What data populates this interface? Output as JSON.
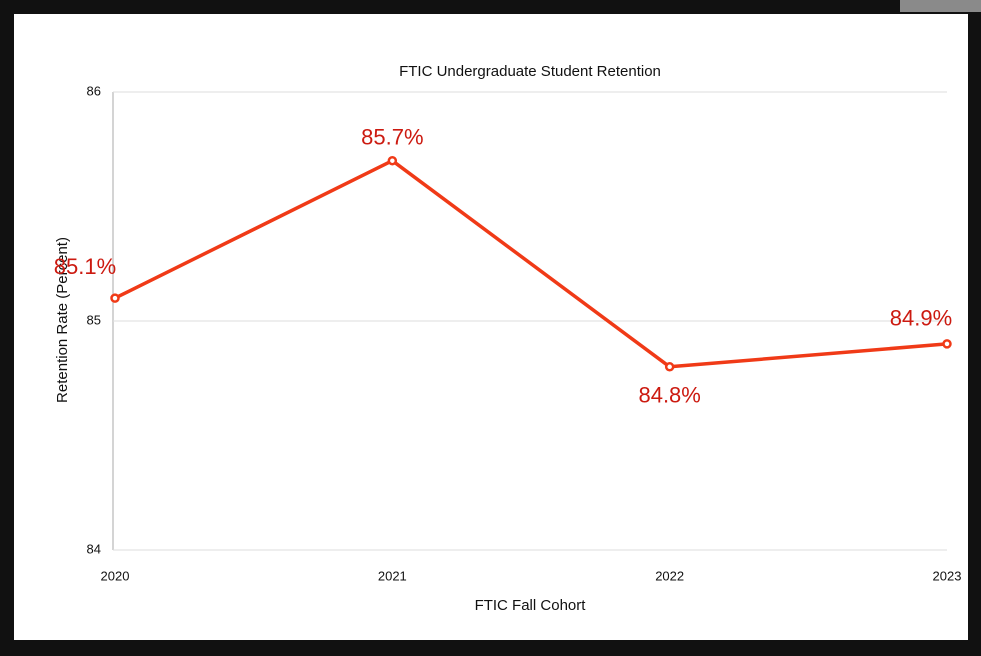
{
  "chart_data": {
    "type": "line",
    "title": "FTIC Undergraduate Student Retention",
    "x_label": "FTIC Fall Cohort",
    "y_label": "Retention Rate (Percent)",
    "categories": [
      "2020",
      "2021",
      "2022",
      "2023"
    ],
    "series": [
      {
        "name": "Retention Rate",
        "color": "#f03a17",
        "values": [
          85.1,
          85.7,
          84.8,
          84.9
        ],
        "value_labels": [
          "85.1%",
          "85.7%",
          "84.8%",
          "84.9%"
        ],
        "label_color": "#cc1a10"
      }
    ],
    "ylim": [
      84,
      86
    ],
    "yticks": [
      84,
      85,
      86
    ],
    "grid": true
  }
}
